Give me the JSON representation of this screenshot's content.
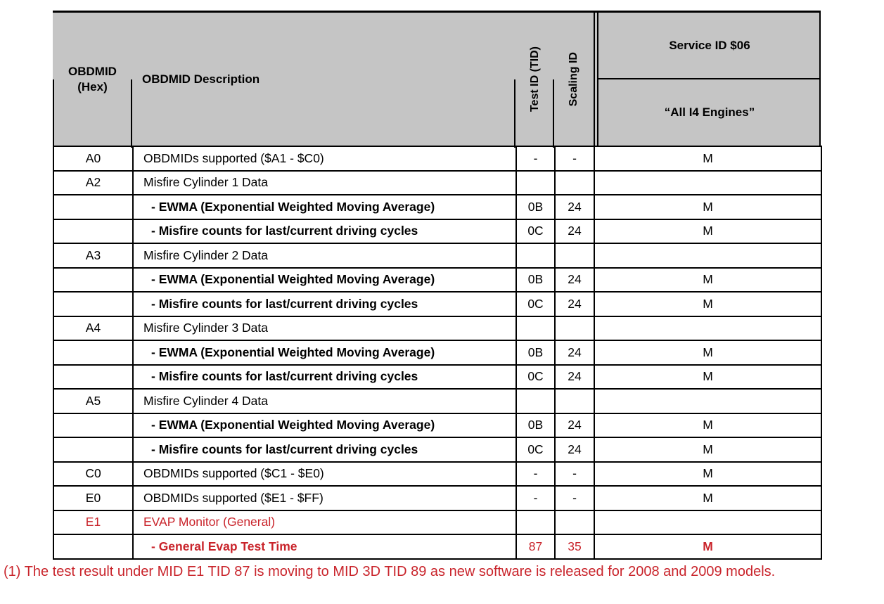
{
  "table": {
    "header": {
      "obdmid_hex": "OBDMID\n(Hex)",
      "obdmid_description": "OBDMID Description",
      "test_id": "Test ID (TID)",
      "scaling_id": "Scaling ID",
      "service_group": "Service ID $06",
      "service_sub": "“All I4 Engines”"
    },
    "rows": [
      {
        "mid": "A0",
        "desc": "OBDMIDs supported ($A1 - $C0)",
        "tid": "-",
        "sid": "-",
        "svc": "M",
        "style": "normal"
      },
      {
        "mid": "A2",
        "desc": "Misfire Cylinder 1 Data",
        "tid": "",
        "sid": "",
        "svc": "",
        "style": "normal"
      },
      {
        "mid": "",
        "desc": "- EWMA (Exponential Weighted Moving Average)",
        "tid": "0B",
        "sid": "24",
        "svc": "M",
        "style": "sub"
      },
      {
        "mid": "",
        "desc": "- Misfire counts for last/current driving cycles",
        "tid": "0C",
        "sid": "24",
        "svc": "M",
        "style": "sub"
      },
      {
        "mid": "A3",
        "desc": "Misfire Cylinder 2 Data",
        "tid": "",
        "sid": "",
        "svc": "",
        "style": "normal"
      },
      {
        "mid": "",
        "desc": "- EWMA (Exponential Weighted Moving Average)",
        "tid": "0B",
        "sid": "24",
        "svc": "M",
        "style": "sub"
      },
      {
        "mid": "",
        "desc": "- Misfire counts for last/current driving cycles",
        "tid": "0C",
        "sid": "24",
        "svc": "M",
        "style": "sub"
      },
      {
        "mid": "A4",
        "desc": "Misfire Cylinder 3 Data",
        "tid": "",
        "sid": "",
        "svc": "",
        "style": "normal"
      },
      {
        "mid": "",
        "desc": "- EWMA (Exponential Weighted Moving Average)",
        "tid": "0B",
        "sid": "24",
        "svc": "M",
        "style": "sub"
      },
      {
        "mid": "",
        "desc": "- Misfire counts for last/current driving cycles",
        "tid": "0C",
        "sid": "24",
        "svc": "M",
        "style": "sub"
      },
      {
        "mid": "A5",
        "desc": "Misfire Cylinder 4 Data",
        "tid": "",
        "sid": "",
        "svc": "",
        "style": "normal"
      },
      {
        "mid": "",
        "desc": "- EWMA (Exponential Weighted Moving Average)",
        "tid": "0B",
        "sid": "24",
        "svc": "M",
        "style": "sub"
      },
      {
        "mid": "",
        "desc": "- Misfire counts for last/current driving cycles",
        "tid": "0C",
        "sid": "24",
        "svc": "M",
        "style": "sub"
      },
      {
        "mid": "C0",
        "desc": "OBDMIDs supported ($C1 - $E0)",
        "tid": "-",
        "sid": "-",
        "svc": "M",
        "style": "normal"
      },
      {
        "mid": "E0",
        "desc": "OBDMIDs supported ($E1 - $FF)",
        "tid": "-",
        "sid": "-",
        "svc": "M",
        "style": "normal"
      },
      {
        "mid": "E1",
        "desc": "EVAP Monitor (General)",
        "tid": "",
        "sid": "",
        "svc": "",
        "style": "red"
      },
      {
        "mid": "",
        "desc": "- General Evap Test Time",
        "tid": "87",
        "sid": "35",
        "svc": "M",
        "style": "red-sub"
      }
    ]
  },
  "footnote": "(1) The test result under MID E1 TID 87 is moving to MID 3D TID 89 as new software is released for 2008 and 2009 models.",
  "colors": {
    "header_bg": "#c5c5c5",
    "highlight_red": "#c9242b",
    "border": "#000000"
  }
}
